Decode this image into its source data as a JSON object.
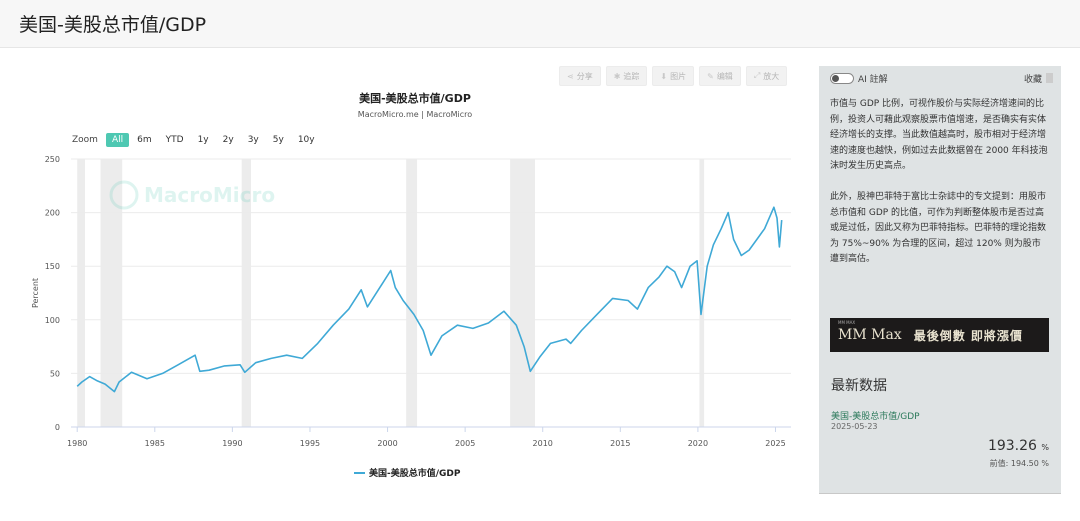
{
  "header": {
    "title": "美国-美股总市值/GDP"
  },
  "toolbar": {
    "share_label": "分享",
    "subscribe_label": "追踪",
    "download_label": "图片",
    "edit_label": "编辑",
    "fullscreen_label": "放大"
  },
  "zoom": {
    "label": "Zoom",
    "options": [
      "All",
      "6m",
      "YTD",
      "1y",
      "2y",
      "3y",
      "5y",
      "10y"
    ],
    "selected": "All"
  },
  "watermark": "MacroMicro",
  "chart_data": {
    "type": "line",
    "title": "美国-美股总市值/GDP",
    "subtitle": "MacroMicro.me | MacroMicro",
    "ylabel": "Percent",
    "xlabel": "",
    "xlim": [
      1979.6,
      2026.0
    ],
    "ylim": [
      0,
      250
    ],
    "x_ticks": [
      1980,
      1985,
      1990,
      1995,
      2000,
      2005,
      2010,
      2015,
      2020,
      2025
    ],
    "y_ticks": [
      0,
      50,
      100,
      150,
      200,
      250
    ],
    "grid": true,
    "legend": "bottom-center",
    "recessions": [
      [
        1980.0,
        1980.5
      ],
      [
        1981.5,
        1982.9
      ],
      [
        1990.6,
        1991.2
      ],
      [
        2001.2,
        2001.9
      ],
      [
        2007.9,
        2009.5
      ],
      [
        2020.1,
        2020.4
      ]
    ],
    "series": [
      {
        "name": "美国-美股总市值/GDP",
        "color": "#3fa9d6",
        "x": [
          1980.0,
          1980.3,
          1980.8,
          1981.3,
          1981.8,
          1982.4,
          1982.7,
          1983.5,
          1984.5,
          1985.5,
          1986.5,
          1987.6,
          1987.9,
          1988.5,
          1989.5,
          1990.5,
          1990.8,
          1991.5,
          1992.5,
          1993.5,
          1994.5,
          1995.5,
          1996.5,
          1997.5,
          1998.3,
          1998.7,
          1999.5,
          2000.2,
          2000.5,
          2001.0,
          2001.7,
          2002.3,
          2002.8,
          2003.5,
          2004.5,
          2005.5,
          2006.5,
          2007.5,
          2008.3,
          2008.8,
          2009.2,
          2009.8,
          2010.5,
          2011.5,
          2011.8,
          2012.5,
          2013.5,
          2014.5,
          2015.5,
          2016.1,
          2016.8,
          2017.5,
          2018.0,
          2018.5,
          2018.95,
          2019.5,
          2019.95,
          2020.2,
          2020.6,
          2021.0,
          2021.5,
          2021.95,
          2022.3,
          2022.8,
          2023.3,
          2023.8,
          2024.3,
          2024.9,
          2025.1,
          2025.25,
          2025.4
        ],
        "y": [
          38,
          42,
          47,
          43,
          40,
          33,
          42,
          51,
          45,
          50,
          58,
          67,
          52,
          53,
          57,
          58,
          51,
          60,
          64,
          67,
          64,
          78,
          95,
          110,
          128,
          112,
          130,
          146,
          130,
          118,
          105,
          90,
          67,
          85,
          95,
          92,
          97,
          108,
          95,
          75,
          52,
          65,
          78,
          82,
          78,
          90,
          105,
          120,
          118,
          110,
          130,
          140,
          150,
          145,
          130,
          150,
          155,
          105,
          150,
          170,
          185,
          200,
          175,
          160,
          165,
          175,
          185,
          205,
          195,
          168,
          193
        ]
      }
    ]
  },
  "sidebar": {
    "ai_label": "AI 註解",
    "favorite_label": "收藏",
    "description": "市值与 GDP 比例，可视作股价与实际经济增速间的比例，投资人可藉此观察股票市值增速，是否确实有实体经济增长的支撑。当此数值越高时，股市相对于经济增速的速度也越快，例如过去此数据曾在 2000 年科技泡沫时发生历史高点。\n\n此外，股神巴菲特于富比士杂誌中的专文提到：用股市总市值和 GDP 的比值，可作为判断整体股市是否过高或是过低，因此又称为巴菲特指标。巴菲特的理论指数为 75%~90% 为合理的区间，超过 120% 则为股市遭到高估。",
    "ad_tag": "MM MAX",
    "ad_brand": "MM Max",
    "ad_text": "最後倒數 即將漲價",
    "latest": {
      "title": "最新数据",
      "name": "美国-美股总市值/GDP",
      "date": "2025-05-23",
      "value": "193.26",
      "unit": "%",
      "previous": "前值: 194.50 %"
    }
  }
}
